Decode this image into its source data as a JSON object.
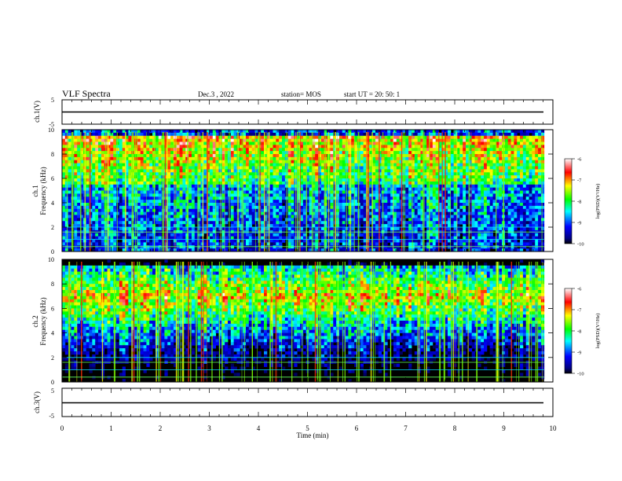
{
  "header": {
    "title": "VLF Spectra",
    "date": "Dec.3 , 2022",
    "station": "station= MOS",
    "start": "start  UT =   20: 50: 1"
  },
  "chart_data": {
    "type": "heatmap",
    "xlabel": "Time  (min)",
    "xlim": [
      0,
      10
    ],
    "xticks": [
      "0",
      "1",
      "2",
      "3",
      "4",
      "5",
      "6",
      "7",
      "8",
      "9",
      "10"
    ],
    "data_end_min": 9.82,
    "panels": [
      {
        "id": "ch1-waveform",
        "type": "line",
        "ylabel": "ch.1(V)",
        "ylim": [
          -5,
          5
        ],
        "yticks": [
          "5",
          "-5"
        ],
        "baseline": 0
      },
      {
        "id": "ch1-spectrogram",
        "type": "heatmap",
        "ylabel": "ch.1",
        "ylabel2": "Frequency (kHz)",
        "ylim": [
          0,
          10
        ],
        "yticks": [
          "0",
          "2",
          "4",
          "6",
          "8",
          "10"
        ],
        "colorbar": {
          "label": "log(PSD)(V²/Hz)",
          "range": [
            -10,
            -6
          ],
          "ticks": [
            "-6",
            "-7",
            "-8",
            "-9",
            "-10"
          ]
        }
      },
      {
        "id": "ch2-spectrogram",
        "type": "heatmap",
        "ylabel": "ch.2",
        "ylabel2": "Frequency (kHz)",
        "ylim": [
          0,
          10
        ],
        "yticks": [
          "0",
          "2",
          "4",
          "6",
          "8",
          "10"
        ],
        "colorbar": {
          "label": "log(PSD)(V²/Hz)",
          "range": [
            -10,
            -6
          ],
          "ticks": [
            "-6",
            "-7",
            "-8",
            "-9",
            "-10"
          ]
        }
      },
      {
        "id": "ch3-waveform",
        "type": "line",
        "ylabel": "ch.3(V)",
        "ylim": [
          -5,
          5
        ],
        "yticks": [
          "5",
          "-5"
        ],
        "baseline": 0
      }
    ],
    "colorscale": [
      "#00007f",
      "#0000ff",
      "#00ffff",
      "#00ff00",
      "#ffff00",
      "#ff0000",
      "#ffffff"
    ],
    "grid": false
  }
}
